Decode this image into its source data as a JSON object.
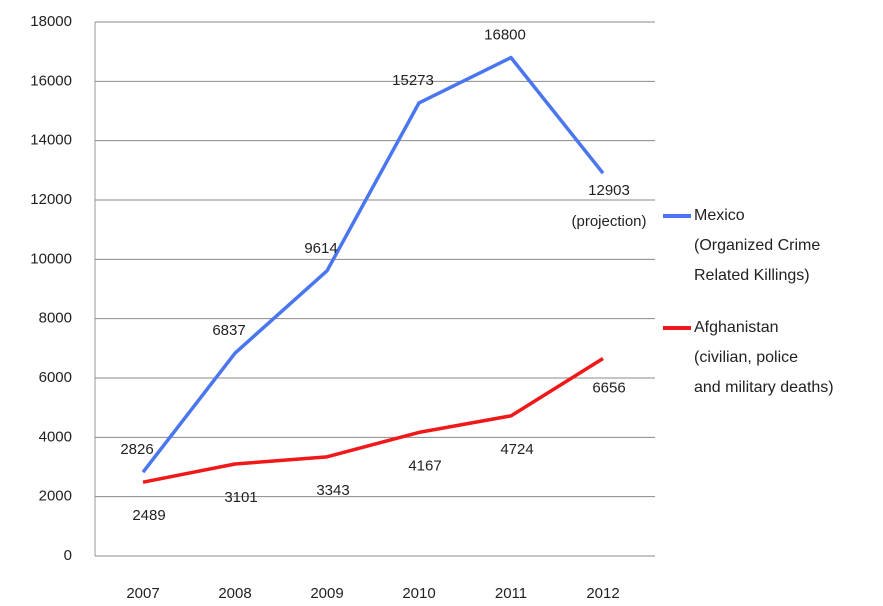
{
  "chart_data": {
    "type": "line",
    "categories": [
      "2007",
      "2008",
      "2009",
      "2010",
      "2011",
      "2012"
    ],
    "series": [
      {
        "name": "Mexico\n(Organized Crime\n Related Killings)",
        "color": "#4a76f0",
        "values": [
          2826,
          6837,
          9614,
          15273,
          16800,
          12903
        ]
      },
      {
        "name": "Afghanistan\n(civilian, police\nand military deaths)",
        "color": "#f01818",
        "values": [
          2489,
          3101,
          3343,
          4167,
          4724,
          6656
        ]
      }
    ],
    "annotations": [
      "(projection)"
    ],
    "ylim": [
      0,
      18000
    ],
    "yticks": [
      0,
      2000,
      4000,
      6000,
      8000,
      10000,
      12000,
      14000,
      16000,
      18000
    ],
    "grid": true
  }
}
